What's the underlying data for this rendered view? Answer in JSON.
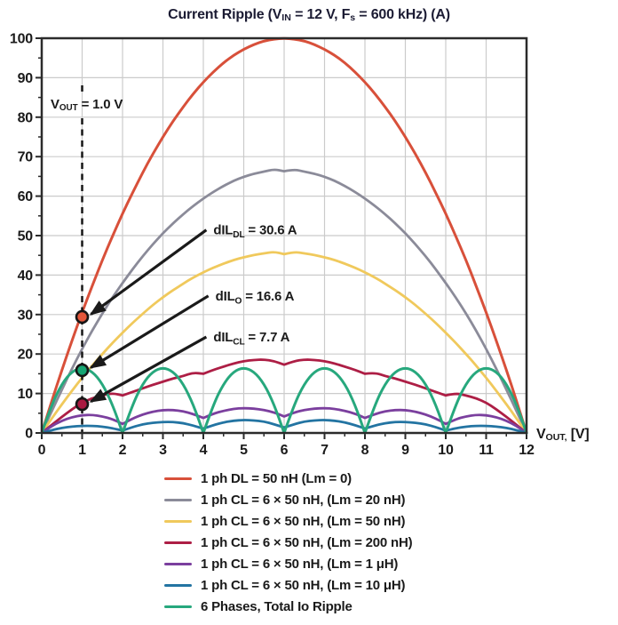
{
  "colors": {
    "background": "#ffffff",
    "grid": "#cbcbcb",
    "border": "#2b2b2b",
    "text": "#1a1a1a",
    "title": "#1b1b33",
    "arrow": "#1a1a1a",
    "marker_outline": "#161616",
    "dashed_line": "#161616"
  },
  "chart_data": {
    "type": "line",
    "title": "Current Ripple (V_IN = 12 V, F_s = 600 kHz) (A)",
    "title_rich": [
      [
        "t",
        "Current Ripple (V"
      ],
      [
        "s",
        "IN"
      ],
      [
        "t",
        " = 12 V, F"
      ],
      [
        "s",
        "s"
      ],
      [
        "t",
        " = 600 kHz) (A)"
      ]
    ],
    "xlabel": "V_OUT, [V]",
    "xlabel_rich": [
      [
        "t",
        "V"
      ],
      [
        "s",
        "OUT,"
      ],
      [
        "t",
        " [V]"
      ]
    ],
    "ylabel": "",
    "xlim": [
      0,
      12
    ],
    "ylim": [
      0,
      100
    ],
    "x_ticks": [
      "0",
      "1",
      "2",
      "3",
      "4",
      "5",
      "6",
      "7",
      "8",
      "9",
      "10",
      "11",
      "12"
    ],
    "y_ticks": [
      "0",
      "10",
      "20",
      "30",
      "40",
      "50",
      "60",
      "70",
      "80",
      "90",
      "100"
    ],
    "x_major": 1,
    "x_minor": 0.5,
    "y_major": 10,
    "y_minor": 5,
    "grid": "major",
    "legend_position": "bottom",
    "vline": {
      "x": 1,
      "label": "V_OUT = 1.0 V",
      "label_rich": [
        [
          "t",
          "V"
        ],
        [
          "s",
          "OUT"
        ],
        [
          "t",
          " = 1.0 V"
        ]
      ]
    },
    "series": [
      {
        "name": "1 ph DL = 50 nH (Lm = 0)",
        "color": "#d8503a",
        "width": 3,
        "x_start": 0,
        "x_step": 0.25,
        "cusps": [],
        "values": [
          0,
          8.2,
          16,
          23.4,
          30.6,
          37.3,
          43.8,
          49.8,
          55.6,
          60.9,
          66,
          70.7,
          75,
          79,
          82.6,
          85.9,
          88.9,
          91.5,
          93.8,
          95.7,
          97.2,
          98.4,
          99.3,
          99.8,
          100,
          99.8,
          99.3,
          98.4,
          97.2,
          95.7,
          93.8,
          91.5,
          88.9,
          85.9,
          82.6,
          79,
          75,
          70.7,
          66,
          60.9,
          55.6,
          49.8,
          43.8,
          37.3,
          30.6,
          23.4,
          16,
          8.2,
          0
        ]
      },
      {
        "name": "1 ph CL = 6 × 50 nH, (Lm = 20 nH)",
        "color": "#8b8b99",
        "width": 2.8,
        "x_start": 0,
        "x_step": 0.25,
        "cusps": [
          6
        ],
        "values": [
          0,
          5.6,
          11,
          16.3,
          21.3,
          26,
          30.3,
          34.3,
          38,
          41.5,
          44.8,
          47.8,
          50.6,
          53.1,
          55.4,
          57.5,
          59.4,
          61.1,
          62.6,
          63.9,
          64.9,
          65.7,
          66.2,
          66.8,
          66.3,
          66.8,
          66.2,
          65.7,
          64.9,
          63.9,
          62.6,
          61.1,
          59.4,
          57.5,
          55.4,
          53.1,
          50.6,
          47.8,
          44.8,
          41.5,
          38,
          34.3,
          30.3,
          26,
          21.3,
          16.3,
          11,
          5.6,
          0
        ]
      },
      {
        "name": "1 ph CL = 6 × 50 nH, (Lm = 50 nH)",
        "color": "#f0c95c",
        "width": 2.8,
        "x_start": 0,
        "x_step": 0.25,
        "cusps": [
          6
        ],
        "values": [
          0,
          3.7,
          7.3,
          10.7,
          14,
          17.1,
          20,
          22.8,
          25.4,
          27.9,
          30.2,
          32.4,
          34.4,
          36.2,
          37.8,
          39.4,
          40.7,
          41.9,
          42.9,
          43.8,
          44.5,
          45.1,
          45.5,
          45.9,
          45.3,
          45.9,
          45.5,
          45.1,
          44.5,
          43.8,
          42.9,
          41.9,
          40.7,
          39.4,
          37.8,
          36.2,
          34.4,
          32.4,
          30.2,
          27.9,
          25.4,
          22.8,
          20,
          17.1,
          14,
          10.7,
          7.3,
          3.7,
          0
        ]
      },
      {
        "name": "1 ph CL = 6 × 50 nH, (Lm = 200 nH)",
        "color": "#ad1e45",
        "width": 2.8,
        "x_start": 0,
        "x_step": 0.25,
        "cusps": [
          2,
          4,
          6,
          8,
          10
        ],
        "values": [
          0,
          2.1,
          4.1,
          6,
          7.7,
          8.8,
          9.5,
          10.1,
          9.5,
          10.4,
          11.3,
          12.2,
          13,
          13.8,
          14.4,
          15.3,
          15,
          16,
          16.8,
          17.6,
          18.2,
          18.5,
          18.6,
          18.2,
          17.3,
          18.2,
          18.6,
          18.5,
          18.2,
          17.6,
          16.8,
          16,
          15,
          15.3,
          14.4,
          13.8,
          13,
          12.2,
          11.3,
          10.4,
          9.5,
          10.1,
          9.5,
          8.8,
          7.7,
          6,
          4.1,
          2.1,
          0
        ]
      },
      {
        "name": "1 ph CL = 6 × 50 nH, (Lm = 1 μH)",
        "color": "#7b3f9e",
        "width": 2.8,
        "x_start": 0,
        "x_step": 0.25,
        "cusps": [
          2,
          4,
          6,
          8,
          10
        ],
        "values": [
          0,
          1.8,
          3.1,
          4,
          4.5,
          4.6,
          4.2,
          3.5,
          2.3,
          3.7,
          4.7,
          5.4,
          5.8,
          5.8,
          5.5,
          4.8,
          3.8,
          4.9,
          5.6,
          6.1,
          6.3,
          6.2,
          5.8,
          5.2,
          4.2,
          5.2,
          5.8,
          6.2,
          6.3,
          6.1,
          5.6,
          4.9,
          3.8,
          4.8,
          5.5,
          5.8,
          5.8,
          5.4,
          4.7,
          3.7,
          2.3,
          3.5,
          4.2,
          4.6,
          4.5,
          4,
          3.1,
          1.8,
          0
        ]
      },
      {
        "name": "1 ph CL = 6 × 50 nH, (Lm = 10 μH)",
        "color": "#2374a2",
        "width": 2.8,
        "x_start": 0,
        "x_step": 0.25,
        "cusps": [
          2,
          4,
          6,
          8,
          10
        ],
        "values": [
          0,
          0.7,
          1.3,
          1.6,
          1.8,
          1.8,
          1.6,
          1.2,
          0.6,
          1.5,
          2.2,
          2.6,
          2.8,
          2.8,
          2.5,
          1.9,
          1.1,
          2,
          2.7,
          3.1,
          3.3,
          3.2,
          2.9,
          2.2,
          1.4,
          2.2,
          2.9,
          3.2,
          3.3,
          3.1,
          2.7,
          2,
          1.1,
          1.9,
          2.5,
          2.8,
          2.8,
          2.6,
          2.2,
          1.5,
          0.6,
          1.2,
          1.6,
          1.8,
          1.8,
          1.6,
          1.3,
          0.7,
          0
        ]
      },
      {
        "name": "6 Phases, Total Io Ripple",
        "color": "#27a87d",
        "width": 3,
        "x_start": 0,
        "x_step": 0.25,
        "cusps": [
          2,
          4,
          6,
          8,
          10
        ],
        "values": [
          0,
          7.3,
          12.5,
          15.6,
          16.6,
          15.6,
          12.5,
          7.3,
          0,
          7.3,
          12.5,
          15.6,
          16.6,
          15.6,
          12.5,
          7.3,
          0,
          7.3,
          12.5,
          15.6,
          16.6,
          15.6,
          12.5,
          7.3,
          0,
          7.3,
          12.5,
          15.6,
          16.6,
          15.6,
          12.5,
          7.3,
          0,
          7.3,
          12.5,
          15.6,
          16.6,
          15.6,
          12.5,
          7.3,
          0,
          7.3,
          12.5,
          15.6,
          16.6,
          15.6,
          12.5,
          7.3,
          0
        ]
      }
    ],
    "markers": [
      {
        "x": 1,
        "y": 29.4,
        "fill": "#e4573b"
      },
      {
        "x": 1,
        "y": 15.9,
        "fill": "#17a673"
      },
      {
        "x": 1,
        "y": 7.3,
        "fill": "#aa1a41"
      }
    ],
    "annotations": [
      {
        "text": "dIL_DL = 30.6 A",
        "rich": [
          [
            "t",
            "dIL"
          ],
          [
            "s",
            "DL"
          ],
          [
            "t",
            " = 30.6 A"
          ]
        ],
        "target": [
          1,
          29.4
        ],
        "text_at": [
          4.25,
          50.3
        ]
      },
      {
        "text": "dIL_O = 16.6 A",
        "rich": [
          [
            "t",
            "dIL"
          ],
          [
            "s",
            "O"
          ],
          [
            "t",
            " = 16.6 A"
          ]
        ],
        "target": [
          1,
          15.9
        ],
        "text_at": [
          4.3,
          33.6
        ]
      },
      {
        "text": "dIL_CL = 7.7 A",
        "rich": [
          [
            "t",
            "dIL"
          ],
          [
            "s",
            "CL"
          ],
          [
            "t",
            " = 7.7 A"
          ]
        ],
        "target": [
          1,
          7.3
        ],
        "text_at": [
          4.25,
          23.2
        ]
      }
    ]
  },
  "legend": {
    "items": [
      {
        "label": "1 ph DL = 50 nH (Lm = 0)",
        "color": "#d8503a"
      },
      {
        "label": "1 ph CL = 6 × 50 nH, (Lm = 20 nH)",
        "color": "#8b8b99"
      },
      {
        "label": "1 ph CL = 6 × 50 nH, (Lm = 50 nH)",
        "color": "#f0c95c"
      },
      {
        "label": "1 ph CL = 6 × 50 nH, (Lm = 200 nH)",
        "color": "#ad1e45"
      },
      {
        "label": "1 ph CL = 6 × 50 nH, (Lm = 1 μH)",
        "color": "#7b3f9e"
      },
      {
        "label": "1 ph CL = 6 × 50 nH, (Lm = 10 μH)",
        "color": "#2374a2"
      },
      {
        "label": "6 Phases, Total Io Ripple",
        "color": "#27a87d"
      }
    ]
  }
}
